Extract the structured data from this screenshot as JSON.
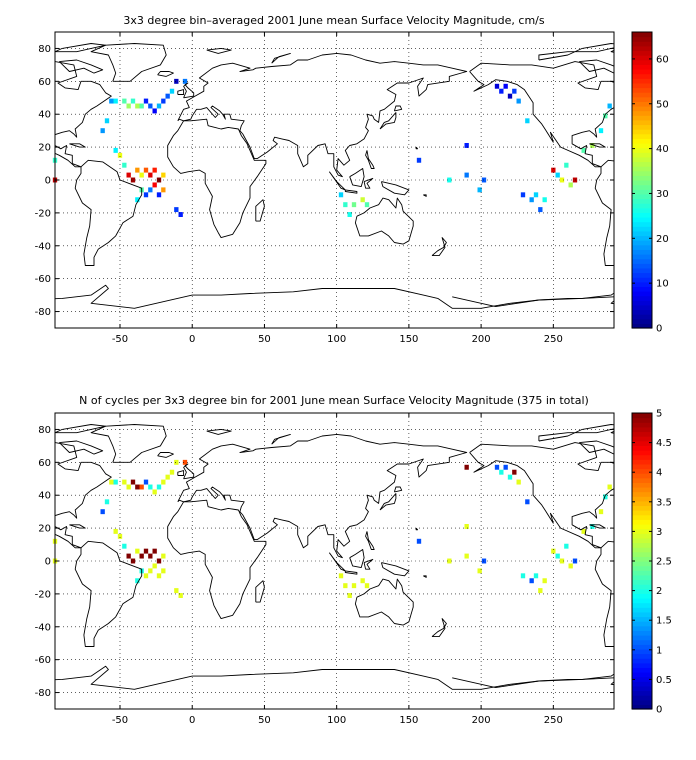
{
  "chart_data": [
    {
      "type": "heatmap",
      "title": "3x3 degree bin–averaged 2001 June mean Surface Velocity Magnitude, cm/s",
      "xlim": [
        -95,
        292
      ],
      "ylim": [
        -90,
        90
      ],
      "xticks": [
        -50,
        0,
        50,
        100,
        150,
        200,
        250
      ],
      "yticks": [
        -80,
        -60,
        -40,
        -20,
        0,
        20,
        40,
        60,
        80
      ],
      "grid": true,
      "colorbar": {
        "min": 0,
        "max": 66,
        "ticks": [
          0,
          10,
          20,
          30,
          40,
          50,
          60
        ],
        "colormap": "jet"
      },
      "cell_size_deg": 3,
      "cells": [
        [
          -95,
          12,
          28
        ],
        [
          -95,
          0,
          62
        ],
        [
          -62,
          30,
          18
        ],
        [
          -59,
          36,
          22
        ],
        [
          -56,
          48,
          18
        ],
        [
          -53,
          48,
          24
        ],
        [
          -47,
          48,
          30
        ],
        [
          -44,
          45,
          35
        ],
        [
          -41,
          48,
          28
        ],
        [
          -38,
          45,
          36
        ],
        [
          -35,
          45,
          30
        ],
        [
          -32,
          48,
          10
        ],
        [
          -29,
          45,
          14
        ],
        [
          -26,
          42,
          8
        ],
        [
          -23,
          45,
          20
        ],
        [
          -20,
          48,
          12
        ],
        [
          -17,
          51,
          14
        ],
        [
          -14,
          54,
          22
        ],
        [
          -11,
          60,
          4
        ],
        [
          -5,
          60,
          16
        ],
        [
          -53,
          18,
          24
        ],
        [
          -50,
          15,
          40
        ],
        [
          -47,
          9,
          28
        ],
        [
          -44,
          3,
          60
        ],
        [
          -41,
          0,
          64
        ],
        [
          -38,
          6,
          48
        ],
        [
          -35,
          3,
          40
        ],
        [
          -32,
          6,
          52
        ],
        [
          -29,
          3,
          60
        ],
        [
          -26,
          6,
          56
        ],
        [
          -23,
          0,
          66
        ],
        [
          -20,
          3,
          44
        ],
        [
          -35,
          -6,
          30
        ],
        [
          -32,
          -9,
          12
        ],
        [
          -29,
          -6,
          16
        ],
        [
          -26,
          -3,
          58
        ],
        [
          -23,
          -9,
          10
        ],
        [
          -20,
          -6,
          48
        ],
        [
          -38,
          -12,
          24
        ],
        [
          -11,
          -18,
          12
        ],
        [
          -8,
          -21,
          10
        ],
        [
          103,
          -9,
          22
        ],
        [
          106,
          -15,
          28
        ],
        [
          109,
          -21,
          26
        ],
        [
          112,
          -15,
          32
        ],
        [
          118,
          -12,
          38
        ],
        [
          121,
          -15,
          30
        ],
        [
          157,
          12,
          12
        ],
        [
          178,
          0,
          26
        ],
        [
          190,
          21,
          10
        ],
        [
          190,
          3,
          16
        ],
        [
          199,
          -6,
          20
        ],
        [
          202,
          0,
          14
        ],
        [
          211,
          57,
          6
        ],
        [
          214,
          54,
          10
        ],
        [
          217,
          57,
          8
        ],
        [
          220,
          51,
          4
        ],
        [
          223,
          54,
          12
        ],
        [
          226,
          48,
          18
        ],
        [
          232,
          36,
          22
        ],
        [
          229,
          -9,
          12
        ],
        [
          235,
          -12,
          18
        ],
        [
          238,
          -9,
          22
        ],
        [
          241,
          -18,
          14
        ],
        [
          244,
          -12,
          26
        ],
        [
          250,
          6,
          60
        ],
        [
          253,
          3,
          22
        ],
        [
          256,
          0,
          40
        ],
        [
          262,
          -3,
          36
        ],
        [
          259,
          9,
          28
        ],
        [
          265,
          0,
          62
        ],
        [
          271,
          18,
          30
        ],
        [
          277,
          21,
          36
        ],
        [
          283,
          30,
          24
        ],
        [
          286,
          39,
          30
        ],
        [
          289,
          45,
          20
        ]
      ]
    },
    {
      "type": "heatmap",
      "title": "N of cycles per 3x3 degree bin for 2001 June mean Surface Velocity Magnitude (375 in total)",
      "xlim": [
        -95,
        292
      ],
      "ylim": [
        -90,
        90
      ],
      "xticks": [
        -50,
        0,
        50,
        100,
        150,
        200,
        250
      ],
      "yticks": [
        -80,
        -60,
        -40,
        -20,
        0,
        20,
        40,
        60,
        80
      ],
      "grid": true,
      "colorbar": {
        "min": 0,
        "max": 5,
        "ticks": [
          0,
          0.5,
          1,
          1.5,
          2,
          2.5,
          3,
          3.5,
          4,
          4.5,
          5
        ],
        "colormap": "jet"
      },
      "cell_size_deg": 3,
      "cells": [
        [
          -95,
          12,
          3
        ],
        [
          -95,
          0,
          3
        ],
        [
          -62,
          30,
          1
        ],
        [
          -59,
          36,
          2
        ],
        [
          -56,
          48,
          3
        ],
        [
          -53,
          48,
          2
        ],
        [
          -47,
          48,
          3
        ],
        [
          -44,
          45,
          3
        ],
        [
          -41,
          48,
          5
        ],
        [
          -38,
          45,
          5
        ],
        [
          -35,
          45,
          4
        ],
        [
          -32,
          48,
          1
        ],
        [
          -29,
          45,
          2
        ],
        [
          -26,
          42,
          3
        ],
        [
          -23,
          45,
          2
        ],
        [
          -20,
          48,
          3
        ],
        [
          -17,
          51,
          3
        ],
        [
          -14,
          54,
          3
        ],
        [
          -11,
          60,
          3
        ],
        [
          -5,
          60,
          4
        ],
        [
          -53,
          18,
          3
        ],
        [
          -50,
          15,
          3
        ],
        [
          -47,
          9,
          2
        ],
        [
          -44,
          3,
          5
        ],
        [
          -41,
          0,
          5
        ],
        [
          -38,
          6,
          3
        ],
        [
          -35,
          3,
          5
        ],
        [
          -32,
          6,
          5
        ],
        [
          -29,
          3,
          5
        ],
        [
          -26,
          6,
          5
        ],
        [
          -23,
          0,
          5
        ],
        [
          -20,
          3,
          3
        ],
        [
          -35,
          -6,
          2
        ],
        [
          -32,
          -9,
          3
        ],
        [
          -29,
          -6,
          3
        ],
        [
          -26,
          -3,
          3
        ],
        [
          -23,
          -9,
          3
        ],
        [
          -20,
          -6,
          3
        ],
        [
          -38,
          -12,
          2
        ],
        [
          -11,
          -18,
          3
        ],
        [
          -8,
          -21,
          3
        ],
        [
          103,
          -9,
          3
        ],
        [
          106,
          -15,
          3
        ],
        [
          109,
          -21,
          3
        ],
        [
          112,
          -15,
          3
        ],
        [
          118,
          -12,
          3
        ],
        [
          121,
          -15,
          3
        ],
        [
          157,
          12,
          1
        ],
        [
          178,
          0,
          3
        ],
        [
          190,
          21,
          3
        ],
        [
          190,
          3,
          3
        ],
        [
          199,
          -6,
          3
        ],
        [
          202,
          0,
          1
        ],
        [
          190,
          57,
          5
        ],
        [
          211,
          57,
          1
        ],
        [
          214,
          54,
          2
        ],
        [
          217,
          57,
          1
        ],
        [
          220,
          51,
          2
        ],
        [
          223,
          54,
          5
        ],
        [
          226,
          48,
          3
        ],
        [
          232,
          36,
          1
        ],
        [
          229,
          -9,
          2
        ],
        [
          235,
          -12,
          1
        ],
        [
          238,
          -9,
          2
        ],
        [
          241,
          -18,
          3
        ],
        [
          244,
          -12,
          3
        ],
        [
          250,
          6,
          3
        ],
        [
          253,
          3,
          2
        ],
        [
          256,
          0,
          3
        ],
        [
          262,
          -3,
          3
        ],
        [
          259,
          9,
          2
        ],
        [
          265,
          0,
          1
        ],
        [
          271,
          18,
          3
        ],
        [
          277,
          21,
          2
        ],
        [
          283,
          30,
          3
        ],
        [
          286,
          39,
          2
        ],
        [
          289,
          45,
          3
        ]
      ]
    }
  ]
}
